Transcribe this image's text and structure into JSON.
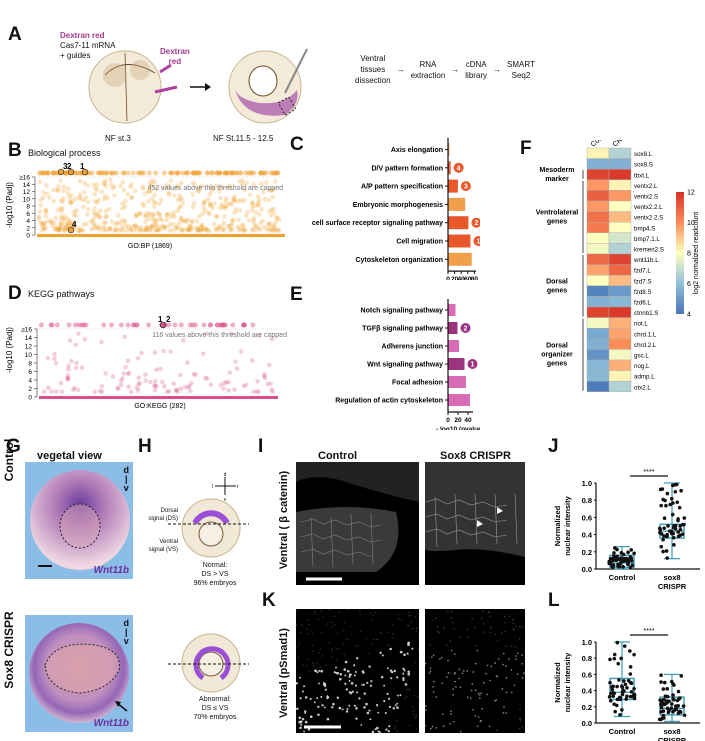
{
  "panels": {
    "A": {
      "label": "A",
      "injection_text_1": "Dextran red",
      "injection_text_2": "Cas7-11 mRNA",
      "injection_text_3": "+ guides",
      "dextran_label_1": "Dextran",
      "dextran_label_2": "red",
      "stage_1": "NF st.3",
      "stage_2": "NF St.11.5 - 12.5",
      "workflow": [
        {
          "line1": "Ventral",
          "line2": "tissues",
          "line3": "dissection"
        },
        {
          "line1": "RNA",
          "line2": "extraction",
          "line3": ""
        },
        {
          "line1": "cDNA",
          "line2": "library",
          "line3": ""
        },
        {
          "line1": "SMART",
          "line2": "Seq2",
          "line3": ""
        }
      ],
      "accent_color": "#a7398f"
    },
    "B": {
      "label": "B",
      "title": "Biological process",
      "ylabel": "-log10 (Padj)",
      "xlabel": "GO:BP (1869)",
      "cap_note": "452 values above this threshold are capped",
      "yticks": [
        "0",
        "2",
        "4",
        "6",
        "8",
        "10",
        "12",
        "14",
        "≥16"
      ],
      "highlights": [
        "1",
        "2",
        "3",
        "4"
      ],
      "color": "#f0a030"
    },
    "C": {
      "label": "C",
      "xlabel": "- log10 (pvalue)",
      "xticks": [
        "0",
        "20",
        "40",
        "60",
        "80"
      ]
    },
    "D": {
      "label": "D",
      "title": "KEGG pathways",
      "ylabel": "-log10 (Padj)",
      "xlabel": "GO:KEGG (282)",
      "cap_note": "116 values above this threshold are capped",
      "yticks": [
        "0",
        "2",
        "4",
        "6",
        "8",
        "10",
        "12",
        "14",
        "≥16"
      ],
      "highlights": [
        "1",
        "2"
      ],
      "color": "#d94f8a"
    },
    "E": {
      "label": "E",
      "xlabel": "- log10 (pvalue)",
      "xticks": [
        "0",
        "20",
        "40"
      ]
    },
    "F": {
      "label": "F",
      "columns": [
        "Control",
        "CRISPR"
      ],
      "groups": [
        {
          "name1": "Mesoderm",
          "name2": "marker",
          "name3": ""
        },
        {
          "name1": "Ventrolateral",
          "name2": "genes",
          "name3": ""
        },
        {
          "name1": "Dorsal",
          "name2": "genes",
          "name3": ""
        },
        {
          "name1": "Dorsal",
          "name2": "organizer",
          "name3": "genes"
        }
      ],
      "colorbar_label": "log2 normalized readcount",
      "colorbar_ticks": [
        "4",
        "6",
        "8",
        "10",
        "12"
      ]
    },
    "G": {
      "label": "G",
      "view_title": "vegetal view",
      "row1": "Control",
      "row2": "Sox8 CRISPR",
      "gene": "Wnt11b",
      "axis_d": "d",
      "axis_v": "v"
    },
    "H": {
      "label": "H",
      "compass_d": "d",
      "compass_l": "l",
      "compass_r": "r",
      "compass_v": "v",
      "dorsal_signal_1": "Dorsal",
      "dorsal_signal_2": "signal (DS)",
      "ventral_signal_1": "Ventral",
      "ventral_signal_2": "signal (VS)",
      "normal_1": "Normal:",
      "normal_2": "DS > VS",
      "normal_3": "96% embryos",
      "abnormal_1": "Abnormal:",
      "abnormal_2": "DS ≤ VS",
      "abnormal_3": "70% embryos"
    },
    "I": {
      "label": "I",
      "col1": "Control",
      "col2": "Sox8 CRISPR",
      "row_label": "Ventral ( β catenin)"
    },
    "K": {
      "label": "K",
      "row_label": "Ventral (pSmad1)"
    },
    "J": {
      "label": "J"
    },
    "L": {
      "label": "L"
    }
  },
  "chart_data": [
    {
      "id": "C",
      "type": "bar",
      "orientation": "horizontal",
      "title": "",
      "xlabel": "- log10 (pvalue)",
      "xlim": [
        0,
        85
      ],
      "categories": [
        "Axis elongation",
        "D/V pattern formation",
        "A/P pattern specification",
        "Embryonic morphogenesis",
        "cell surface receptor signaling pathway",
        "Cell migration",
        "Cytoskeleton organization"
      ],
      "values": [
        4,
        8,
        30,
        52,
        62,
        68,
        72
      ],
      "highlighted_rank": [
        "",
        "4",
        "3",
        "",
        "2",
        "1",
        ""
      ],
      "colors": [
        "#f0a04a",
        "#e8582a",
        "#e8582a",
        "#f0a04a",
        "#e8582a",
        "#e8582a",
        "#f0a04a"
      ]
    },
    {
      "id": "E",
      "type": "bar",
      "orientation": "horizontal",
      "title": "",
      "xlabel": "- log10 (pvalue)",
      "xlim": [
        0,
        50
      ],
      "categories": [
        "Notch signaling pathway",
        "TGFβ signaling pathway",
        "Adherens junction",
        "Wnt signaling pathway",
        "Focal adhesion",
        "Regulation of actin cytoskeleton"
      ],
      "values": [
        15,
        19,
        22,
        33,
        36,
        44
      ],
      "highlighted_rank": [
        "",
        "2",
        "",
        "1",
        "",
        ""
      ],
      "colors": [
        "#d86cb7",
        "#9a3580",
        "#d86cb7",
        "#9a3580",
        "#d86cb7",
        "#d86cb7"
      ]
    },
    {
      "id": "F",
      "type": "heatmap",
      "title": "",
      "colorbar_label": "log2 normalized readcount",
      "range": [
        4,
        12
      ],
      "columns": [
        "Control",
        "CRISPR"
      ],
      "rows": [
        "sox8.L",
        "sox8.S",
        "tbxt.L",
        "ventx2.L",
        "ventx2.S",
        "ventx2.2.L",
        "ventx2.2.S",
        "bmp4.S",
        "bmp7.1.L",
        "kremen2.S",
        "wnt11b.L",
        "fzd7.L",
        "fzd7.S",
        "fzd8.S",
        "fzd6.L",
        "ctnnb1.S",
        "not.L",
        "chrd.1.L",
        "chrd.2.L",
        "gsc.L",
        "nog.L",
        "admp.L",
        "otx2.L"
      ],
      "values": [
        [
          8.2,
          6.6
        ],
        [
          5.6,
          5.6
        ],
        [
          11.6,
          11.8
        ],
        [
          9.8,
          8.2
        ],
        [
          11.0,
          9.8
        ],
        [
          9.8,
          8.0
        ],
        [
          10.6,
          9.2
        ],
        [
          10.4,
          8.0
        ],
        [
          8.0,
          7.2
        ],
        [
          7.8,
          6.6
        ],
        [
          10.8,
          11.6
        ],
        [
          9.6,
          10.8
        ],
        [
          8.0,
          9.2
        ],
        [
          4.4,
          5.0
        ],
        [
          5.6,
          5.8
        ],
        [
          11.6,
          11.8
        ],
        [
          7.8,
          9.4
        ],
        [
          5.4,
          9.6
        ],
        [
          5.6,
          10.0
        ],
        [
          4.8,
          7.8
        ],
        [
          5.8,
          9.4
        ],
        [
          5.8,
          8.2
        ],
        [
          4.2,
          6.6
        ]
      ]
    },
    {
      "id": "J",
      "type": "scatter",
      "subtype": "box",
      "ylabel": "Normalized nuclear intensity",
      "ylim": [
        0,
        1.0
      ],
      "yticks": [
        "0.0",
        "0.2",
        "0.4",
        "0.6",
        "0.8",
        "1.0"
      ],
      "categories": [
        "Control",
        "sox8 CRISPR"
      ],
      "significance": "****",
      "boxes": [
        {
          "name": "Control",
          "min": 0.0,
          "q1": 0.02,
          "median": 0.07,
          "q3": 0.16,
          "max": 0.26
        },
        {
          "name": "sox8 CRISPR",
          "min": 0.12,
          "q1": 0.36,
          "median": 0.44,
          "q3": 0.52,
          "max": 1.0
        }
      ]
    },
    {
      "id": "L",
      "type": "scatter",
      "subtype": "box",
      "ylabel": "Normalized nuclear intensity",
      "ylim": [
        0,
        1.0
      ],
      "yticks": [
        "0.0",
        "0.2",
        "0.4",
        "0.6",
        "0.8",
        "1.0"
      ],
      "categories": [
        "Control",
        "sox8 CRISPR"
      ],
      "significance": "****",
      "boxes": [
        {
          "name": "Control",
          "min": 0.08,
          "q1": 0.29,
          "median": 0.38,
          "q3": 0.55,
          "max": 1.0
        },
        {
          "name": "sox8 CRISPR",
          "min": 0.02,
          "q1": 0.1,
          "median": 0.18,
          "q3": 0.32,
          "max": 0.6
        }
      ]
    }
  ]
}
